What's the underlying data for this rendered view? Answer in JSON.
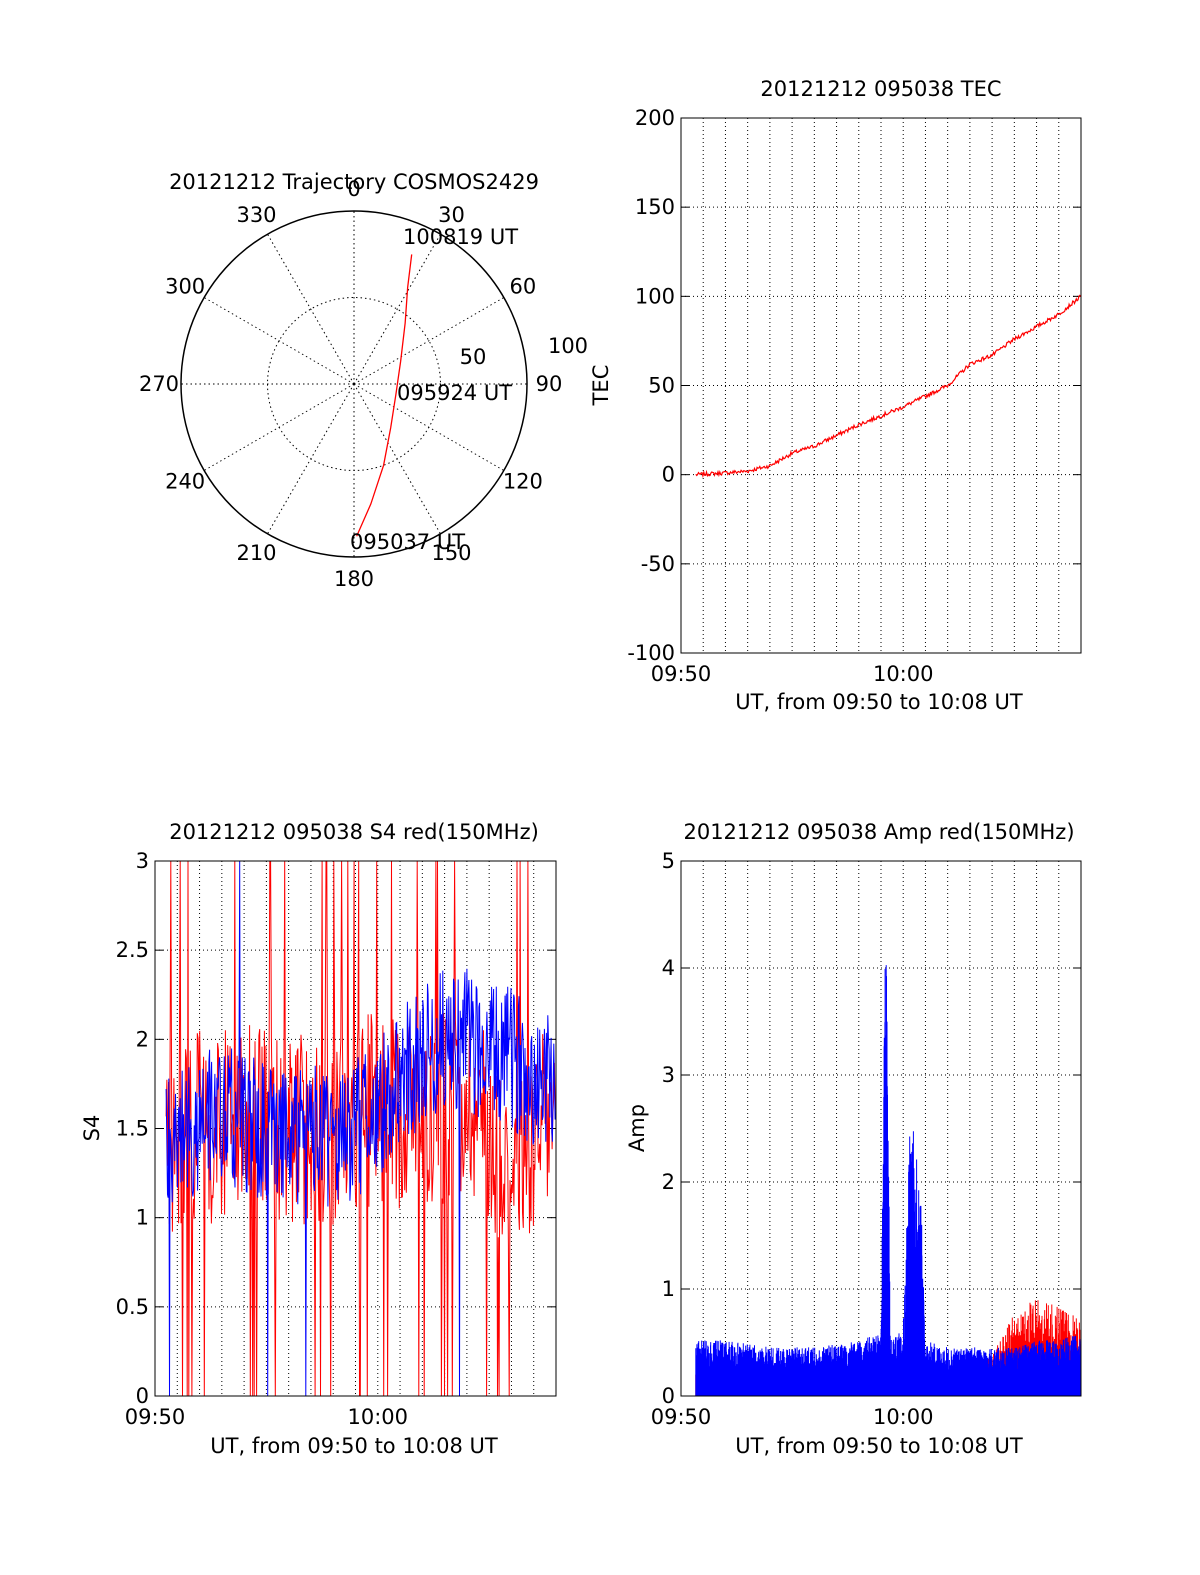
{
  "figure": {
    "polar": {
      "title": "20121212 Trajectory COSMOS2429",
      "azimuth_labels": [
        "0",
        "30",
        "60",
        "90",
        "120",
        "150",
        "180",
        "210",
        "240",
        "270",
        "300",
        "330"
      ],
      "elevation_labels": [
        "50",
        "100"
      ],
      "time_labels": [
        "100819 UT",
        "095924 UT",
        "095037 UT"
      ]
    },
    "tec": {
      "title": "20121212 095038 TEC",
      "ylabel": "TEC",
      "xlabel": "UT, from 09:50 to 10:08 UT",
      "xticks": [
        "09:50",
        "10:00"
      ],
      "yticks": [
        "-100",
        "-50",
        "0",
        "50",
        "100",
        "150",
        "200"
      ]
    },
    "s4": {
      "title": "20121212 095038 S4 red(150MHz)",
      "ylabel": "S4",
      "xlabel": "UT, from 09:50 to 10:08 UT",
      "xticks": [
        "09:50",
        "10:00"
      ],
      "yticks": [
        "0",
        "0.5",
        "1",
        "1.5",
        "2",
        "2.5",
        "3"
      ]
    },
    "amp": {
      "title": "20121212 095038 Amp red(150MHz)",
      "ylabel": "Amp",
      "xlabel": "UT, from 09:50 to 10:08 UT",
      "xticks": [
        "09:50",
        "10:00"
      ],
      "yticks": [
        "0",
        "1",
        "2",
        "3",
        "4",
        "5"
      ]
    }
  },
  "chart_data": [
    {
      "type": "scatter",
      "title": "20121212 Trajectory COSMOS2429",
      "polar": true,
      "radial_axis": "zenith angle (0 at center, 100 at rim)",
      "rlim": [
        0,
        100
      ],
      "azimuth_ticks": [
        0,
        30,
        60,
        90,
        120,
        150,
        180,
        210,
        240,
        270,
        300,
        330
      ],
      "series": [
        {
          "color": "#ff0000",
          "points": [
            {
              "az": 179,
              "r": 88,
              "label": "095037 UT"
            },
            {
              "az": 172,
              "r": 70
            },
            {
              "az": 160,
              "r": 50
            },
            {
              "az": 140,
              "r": 33
            },
            {
              "az": 105,
              "r": 25
            },
            {
              "az": 64,
              "r": 30
            },
            {
              "az": 40,
              "r": 46
            },
            {
              "az": 29,
              "r": 64
            },
            {
              "az": 24,
              "r": 82,
              "label": "100819 UT"
            }
          ]
        }
      ],
      "annotations": [
        {
          "text": "095924 UT",
          "az": 100,
          "r": 24
        }
      ]
    },
    {
      "type": "line",
      "title": "20121212 095038 TEC",
      "xlabel": "UT, from 09:50 to 10:08 UT",
      "ylabel": "TEC",
      "xlim": [
        "09:50",
        "10:08"
      ],
      "ylim": [
        -100,
        200
      ],
      "x": [
        "09:50:40",
        "09:52",
        "09:53",
        "09:54",
        "09:55",
        "09:56",
        "09:57",
        "09:58",
        "09:59",
        "10:00",
        "10:01",
        "10:02",
        "10:03",
        "10:04",
        "10:05",
        "10:06",
        "10:07",
        "10:08"
      ],
      "series": [
        {
          "color": "#ff0000",
          "values": [
            0,
            1,
            2,
            5,
            12,
            16,
            22,
            28,
            33,
            38,
            44,
            50,
            62,
            67,
            76,
            83,
            90,
            100
          ]
        }
      ]
    },
    {
      "type": "line",
      "title": "20121212 095038 S4 red(150MHz)",
      "xlabel": "UT, from 09:50 to 10:08 UT",
      "ylabel": "S4",
      "xlim": [
        "09:50",
        "10:08"
      ],
      "ylim": [
        0,
        3
      ],
      "x": [
        "09:50:30",
        "09:51",
        "09:52",
        "09:53",
        "09:54",
        "09:55",
        "09:56",
        "09:57",
        "09:58",
        "09:59",
        "10:00",
        "10:01",
        "10:02",
        "10:03",
        "10:04",
        "10:05",
        "10:06",
        "10:07",
        "10:08"
      ],
      "series": [
        {
          "color": "#ff0000",
          "values": [
            1.4,
            1.5,
            1.5,
            1.5,
            1.6,
            1.5,
            1.5,
            1.5,
            1.5,
            1.6,
            1.6,
            1.6,
            1.6,
            1.6,
            1.7,
            1.5,
            1.3,
            1.4,
            1.6
          ]
        },
        {
          "color": "#0000ff",
          "values": [
            1.4,
            1.5,
            1.5,
            1.6,
            1.5,
            1.5,
            1.4,
            1.5,
            1.4,
            1.5,
            1.6,
            1.8,
            1.9,
            2.0,
            2.0,
            1.9,
            1.9,
            1.8,
            1.8
          ]
        }
      ]
    },
    {
      "type": "line",
      "title": "20121212 095038 Amp red(150MHz)",
      "xlabel": "UT, from 09:50 to 10:08 UT",
      "ylabel": "Amp",
      "xlim": [
        "09:50",
        "10:08"
      ],
      "ylim": [
        0,
        5
      ],
      "x": [
        "09:50:40",
        "09:52",
        "09:54",
        "09:56",
        "09:58",
        "09:59",
        "09:59:15",
        "09:59:25",
        "10:00",
        "10:00:20",
        "10:00:35",
        "10:00:45",
        "10:01",
        "10:02",
        "10:03",
        "10:04",
        "10:05",
        "10:06",
        "10:07",
        "10:08"
      ],
      "series": [
        {
          "color": "#0000ff",
          "values": [
            0.4,
            0.4,
            0.35,
            0.35,
            0.4,
            0.45,
            4.2,
            0.4,
            0.5,
            2.15,
            1.75,
            1.65,
            0.4,
            0.35,
            0.35,
            0.35,
            0.35,
            0.4,
            0.4,
            0.45
          ]
        },
        {
          "color": "#ff0000",
          "values": [
            0.2,
            0.2,
            0.2,
            0.2,
            0.2,
            0.2,
            0.2,
            0.2,
            0.2,
            0.2,
            0.2,
            0.2,
            0.2,
            0.2,
            0.2,
            0.3,
            0.6,
            0.7,
            0.65,
            0.55
          ]
        }
      ]
    }
  ]
}
